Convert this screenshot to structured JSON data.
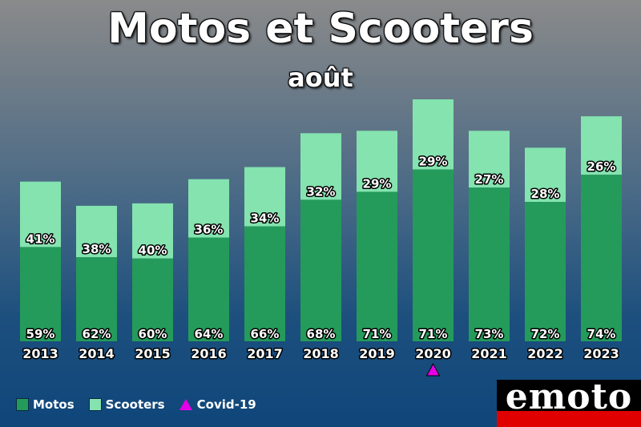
{
  "header": {
    "title": "Motos et Scooters",
    "subtitle": "août"
  },
  "legend": {
    "motos_label": "Motos",
    "scooters_label": "Scooters",
    "covid_label": "Covid-19"
  },
  "colors": {
    "motos": "#249b5a",
    "scooters": "#84e3af",
    "covid": "#e600e6"
  },
  "logo": {
    "text": "emoto"
  },
  "chart_data": {
    "type": "bar",
    "stacked": true,
    "categories": [
      "2013",
      "2014",
      "2015",
      "2016",
      "2017",
      "2018",
      "2019",
      "2020",
      "2021",
      "2022",
      "2023"
    ],
    "series": [
      {
        "name": "Motos",
        "values": [
          59,
          62,
          60,
          64,
          66,
          68,
          71,
          71,
          73,
          72,
          74
        ]
      },
      {
        "name": "Scooters",
        "values": [
          41,
          38,
          40,
          36,
          34,
          32,
          29,
          29,
          27,
          28,
          26
        ]
      }
    ],
    "bar_totals_relative": [
      0.66,
      0.56,
      0.57,
      0.67,
      0.72,
      0.86,
      0.87,
      1.0,
      0.87,
      0.8,
      0.93
    ],
    "value_suffix": "%",
    "annotations": [
      {
        "category": "2020",
        "marker": "triangle",
        "label": "Covid-19"
      }
    ],
    "title": "Motos et Scooters",
    "subtitle": "août",
    "grid": false,
    "legend_position": "bottom-left"
  }
}
